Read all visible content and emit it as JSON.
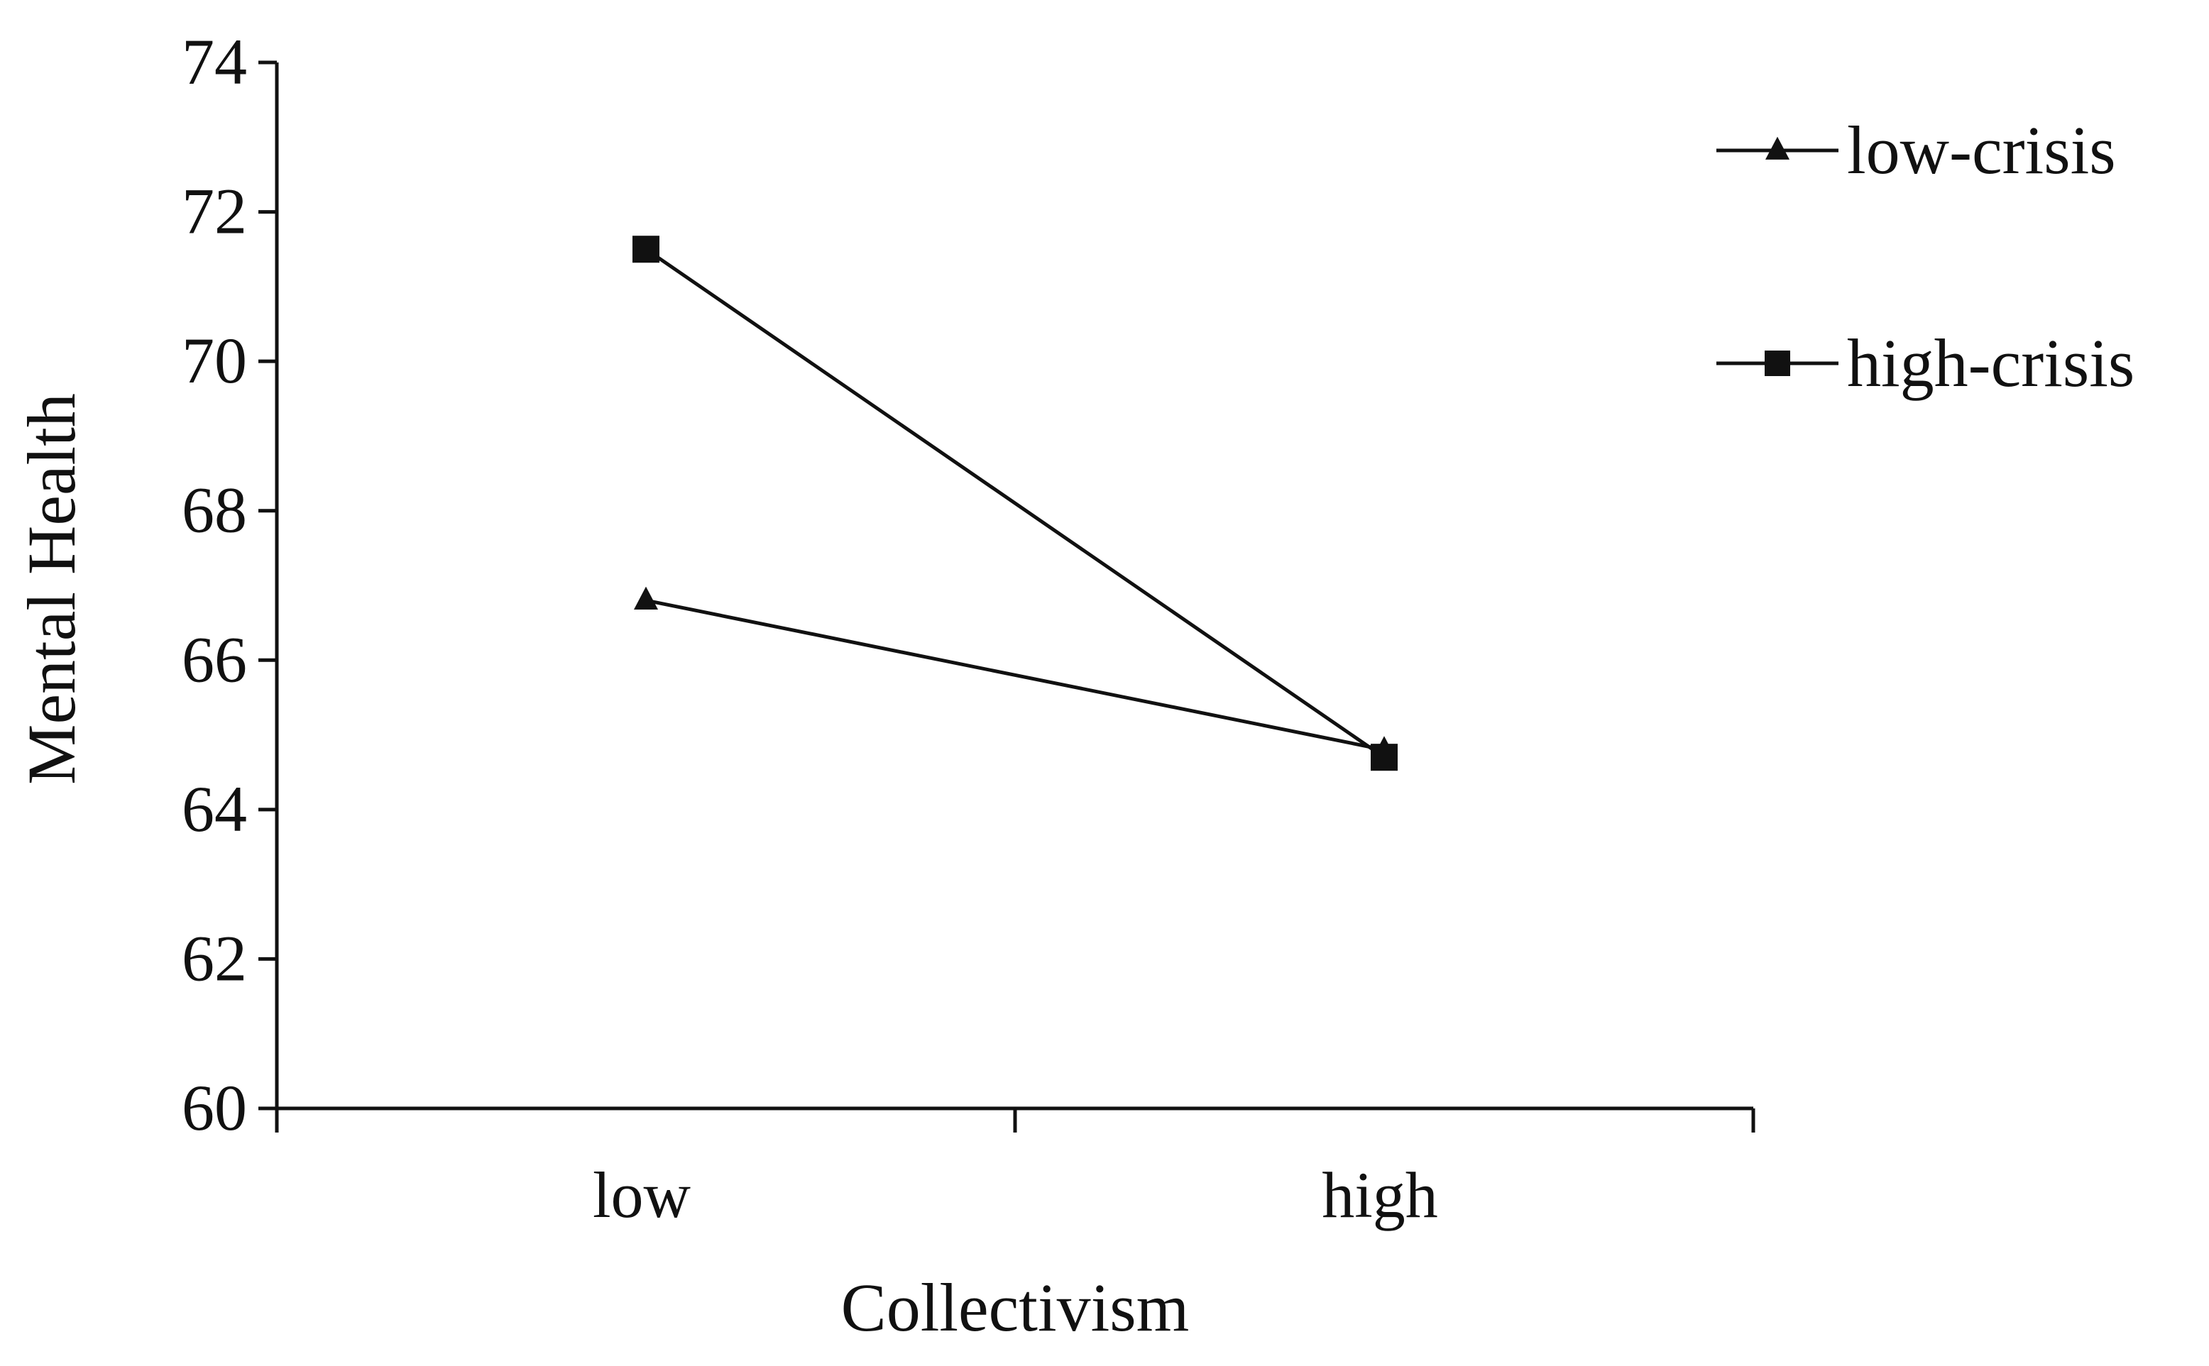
{
  "chart_data": {
    "type": "line",
    "title": "",
    "xlabel": "Collectivism",
    "ylabel": "Mental Health",
    "categories": [
      "low",
      "high"
    ],
    "ylim": [
      60,
      74
    ],
    "yticks": [
      "60",
      "62",
      "64",
      "66",
      "68",
      "70",
      "72",
      "74"
    ],
    "grid": false,
    "legend_position": "top-right",
    "series": [
      {
        "name": "low-crisis",
        "marker": "triangle",
        "values": [
          66.8,
          64.8
        ]
      },
      {
        "name": "high-crisis",
        "marker": "square",
        "values": [
          71.5,
          64.7
        ]
      }
    ],
    "colors": {
      "line": "#111111",
      "axis": "#111111"
    }
  }
}
